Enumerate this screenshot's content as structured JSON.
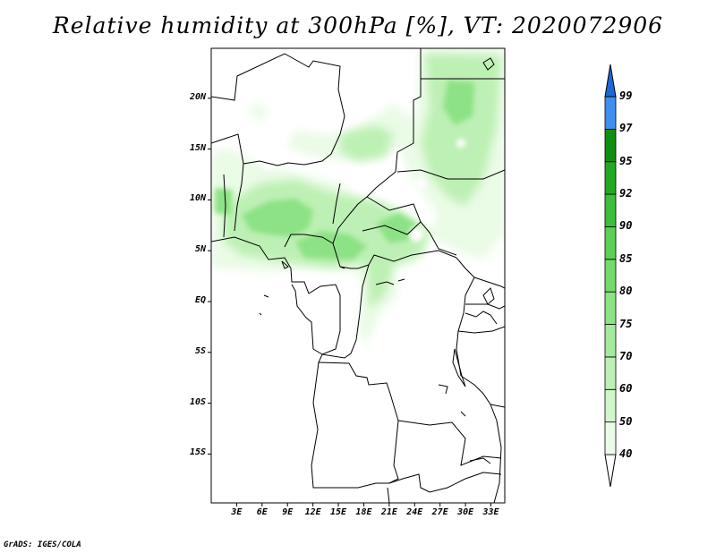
{
  "title": "Relative humidity at 300hPa [%], VT: 2020072906",
  "credit": "GrADS: IGES/COLA",
  "map": {
    "lat_labels": [
      "20N",
      "15N",
      "10N",
      "5N",
      "EQ",
      "5S",
      "10S",
      "15S"
    ],
    "lon_labels": [
      "3E",
      "6E",
      "9E",
      "12E",
      "15E",
      "18E",
      "21E",
      "24E",
      "27E",
      "30E",
      "33E"
    ],
    "lon_range": [
      0,
      35
    ],
    "lat_range": [
      -20,
      25
    ]
  },
  "colorbar": {
    "levels": [
      40,
      50,
      60,
      70,
      75,
      80,
      85,
      90,
      92,
      95,
      97,
      99
    ],
    "labels": [
      "40",
      "50",
      "60",
      "70",
      "75",
      "80",
      "85",
      "90",
      "92",
      "95",
      "97",
      "99"
    ],
    "colors": [
      "#eafbe6",
      "#d2f6cc",
      "#bdf0b4",
      "#a4ea9c",
      "#8de285",
      "#75da6c",
      "#5ccf55",
      "#3cbd3c",
      "#22a822",
      "#0f8f10",
      "#3f8ef0",
      "#1f66d8"
    ]
  },
  "colors": {
    "land_boundary": "#000000",
    "low_humidity": "#ffffff"
  }
}
